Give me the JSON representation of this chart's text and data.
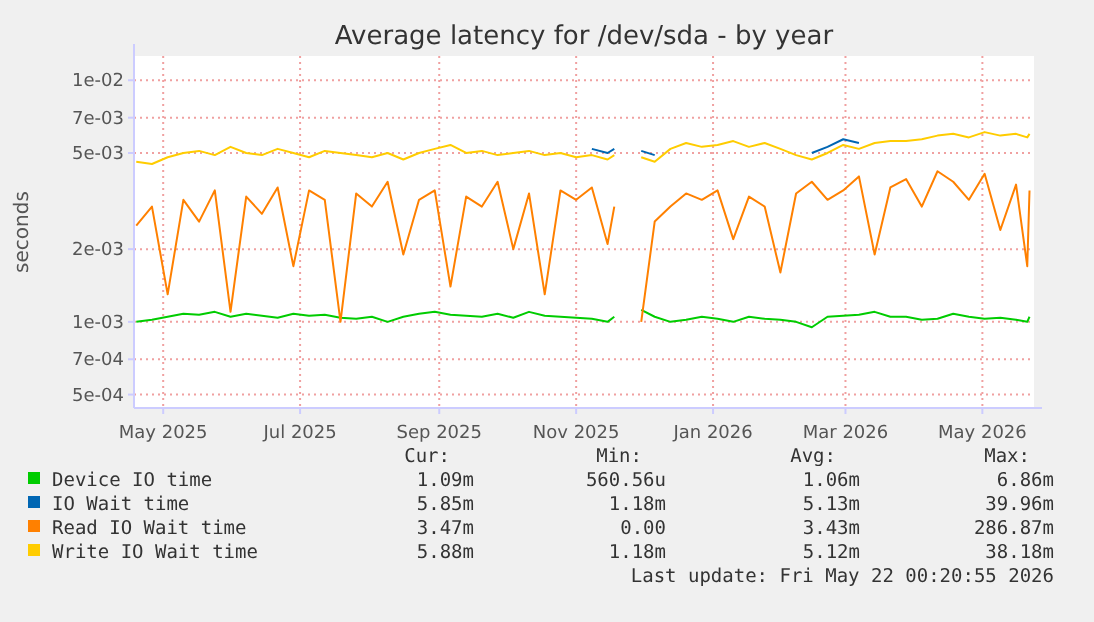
{
  "chart_data": {
    "type": "line",
    "title": "Average latency for /dev/sda - by year",
    "ylabel": "seconds",
    "log": true,
    "grid": true,
    "legend": "bottom",
    "marker": "none",
    "line_style": "solid",
    "x": [
      "2025-04-19",
      "2025-04-26",
      "2025-05-03",
      "2025-05-10",
      "2025-05-17",
      "2025-05-24",
      "2025-05-31",
      "2025-06-07",
      "2025-06-14",
      "2025-06-21",
      "2025-06-28",
      "2025-07-05",
      "2025-07-12",
      "2025-07-19",
      "2025-07-26",
      "2025-08-02",
      "2025-08-09",
      "2025-08-16",
      "2025-08-23",
      "2025-08-30",
      "2025-09-06",
      "2025-09-13",
      "2025-09-20",
      "2025-09-27",
      "2025-10-04",
      "2025-10-11",
      "2025-10-18",
      "2025-10-25",
      "2025-11-01",
      "2025-11-08",
      "2025-11-15",
      "2025-11-18",
      "2025-11-24",
      "2025-11-30",
      "2025-12-06",
      "2025-12-13",
      "2025-12-20",
      "2025-12-27",
      "2026-01-03",
      "2026-01-10",
      "2026-01-17",
      "2026-01-24",
      "2026-01-31",
      "2026-02-07",
      "2026-02-14",
      "2026-02-21",
      "2026-02-28",
      "2026-03-07",
      "2026-03-14",
      "2026-03-21",
      "2026-03-28",
      "2026-04-04",
      "2026-04-11",
      "2026-04-18",
      "2026-04-25",
      "2026-05-02",
      "2026-05-09",
      "2026-05-16",
      "2026-05-21",
      "2026-05-22"
    ],
    "xlim": [
      "2025-04-18",
      "2026-05-24"
    ],
    "xticks": [
      {
        "value": "2025-05-01",
        "label": "May 2025"
      },
      {
        "value": "2025-07-01",
        "label": "Jul 2025"
      },
      {
        "value": "2025-09-01",
        "label": "Sep 2025"
      },
      {
        "value": "2025-11-01",
        "label": "Nov 2025"
      },
      {
        "value": "2026-01-01",
        "label": "Jan 2026"
      },
      {
        "value": "2026-03-01",
        "label": "Mar 2026"
      },
      {
        "value": "2026-05-01",
        "label": "May 2026"
      }
    ],
    "ylim": [
      0.00044,
      0.0126
    ],
    "yticks": [
      {
        "value": 0.0005,
        "label": "5e-04"
      },
      {
        "value": 0.0007,
        "label": "7e-04"
      },
      {
        "value": 0.001,
        "label": "1e-03"
      },
      {
        "value": 0.002,
        "label": "2e-03"
      },
      {
        "value": 0.005,
        "label": "5e-03"
      },
      {
        "value": 0.007,
        "label": "7e-03"
      },
      {
        "value": 0.01,
        "label": "1e-02"
      }
    ],
    "series": [
      {
        "name": "Device IO time",
        "color": "#00cc00",
        "values": [
          0.001,
          0.00102,
          0.00105,
          0.00108,
          0.00107,
          0.0011,
          0.00105,
          0.00108,
          0.00106,
          0.00104,
          0.00108,
          0.00106,
          0.00107,
          0.00104,
          0.00103,
          0.00105,
          0.001,
          0.00105,
          0.00108,
          0.0011,
          0.00107,
          0.00106,
          0.00105,
          0.00108,
          0.00104,
          0.0011,
          0.00106,
          0.00105,
          0.00104,
          0.00103,
          0.001,
          0.00105,
          null,
          0.00112,
          0.00105,
          0.001,
          0.00102,
          0.00105,
          0.00103,
          0.001,
          0.00105,
          0.00103,
          0.00102,
          0.001,
          0.00095,
          0.00105,
          0.00106,
          0.00107,
          0.0011,
          0.00105,
          0.00105,
          0.00102,
          0.00103,
          0.00108,
          0.00105,
          0.00103,
          0.00104,
          0.00102,
          0.001,
          0.00105
        ]
      },
      {
        "name": "IO Wait time",
        "color": "#0066b3",
        "values": [
          null,
          null,
          null,
          null,
          null,
          null,
          null,
          null,
          null,
          null,
          null,
          null,
          null,
          null,
          null,
          null,
          null,
          null,
          null,
          null,
          null,
          null,
          null,
          null,
          null,
          null,
          null,
          null,
          null,
          0.0052,
          0.005,
          0.0052,
          null,
          0.0051,
          0.0049,
          null,
          null,
          null,
          null,
          null,
          null,
          null,
          null,
          null,
          0.005,
          0.0053,
          0.0057,
          0.0055,
          null,
          null,
          null,
          null,
          null,
          null,
          null,
          null,
          null,
          null,
          null,
          null
        ]
      },
      {
        "name": "Read IO Wait time",
        "color": "#ff8000",
        "values": [
          0.0025,
          0.003,
          0.0013,
          0.0032,
          0.0026,
          0.0035,
          0.0011,
          0.0033,
          0.0028,
          0.0036,
          0.0017,
          0.0035,
          0.0032,
          0.001,
          0.0034,
          0.003,
          0.0038,
          0.0019,
          0.0032,
          0.0035,
          0.0014,
          0.0033,
          0.003,
          0.0038,
          0.002,
          0.0034,
          0.0013,
          0.0035,
          0.0032,
          0.0036,
          0.0021,
          0.003,
          null,
          0.001,
          0.0026,
          0.003,
          0.0034,
          0.0032,
          0.0035,
          0.0022,
          0.0033,
          0.003,
          0.0016,
          0.0034,
          0.0038,
          0.0032,
          0.0035,
          0.004,
          0.0019,
          0.0036,
          0.0039,
          0.003,
          0.0042,
          0.0038,
          0.0032,
          0.0041,
          0.0024,
          0.0037,
          0.0017,
          0.0035
        ]
      },
      {
        "name": "Write IO Wait time",
        "color": "#ffcc00",
        "values": [
          0.0046,
          0.0045,
          0.0048,
          0.005,
          0.0051,
          0.0049,
          0.0053,
          0.005,
          0.0049,
          0.0052,
          0.005,
          0.0048,
          0.0051,
          0.005,
          0.0049,
          0.0048,
          0.005,
          0.0047,
          0.005,
          0.0052,
          0.0054,
          0.005,
          0.0051,
          0.0049,
          0.005,
          0.0051,
          0.0049,
          0.005,
          0.0048,
          0.0049,
          0.0047,
          0.0049,
          null,
          0.0048,
          0.0046,
          0.0052,
          0.0055,
          0.0053,
          0.0054,
          0.0056,
          0.0053,
          0.0055,
          0.0052,
          0.0049,
          0.0047,
          0.005,
          0.0054,
          0.0052,
          0.0055,
          0.0056,
          0.0056,
          0.0057,
          0.0059,
          0.006,
          0.0058,
          0.0061,
          0.0059,
          0.006,
          0.0058,
          0.006
        ]
      }
    ],
    "annotations": [
      "Cur:",
      "Min:",
      "Avg:",
      "Max:",
      "1.09m",
      "560.56u",
      "1.06m",
      "6.86m",
      "5.85m",
      "1.18m",
      "5.13m",
      "39.96m",
      "3.47m",
      "0.00",
      "3.43m",
      "286.87m",
      "5.88m",
      "1.18m",
      "5.12m",
      "38.18m",
      "Last update: Fri May 22 00:20:55 2026"
    ]
  }
}
